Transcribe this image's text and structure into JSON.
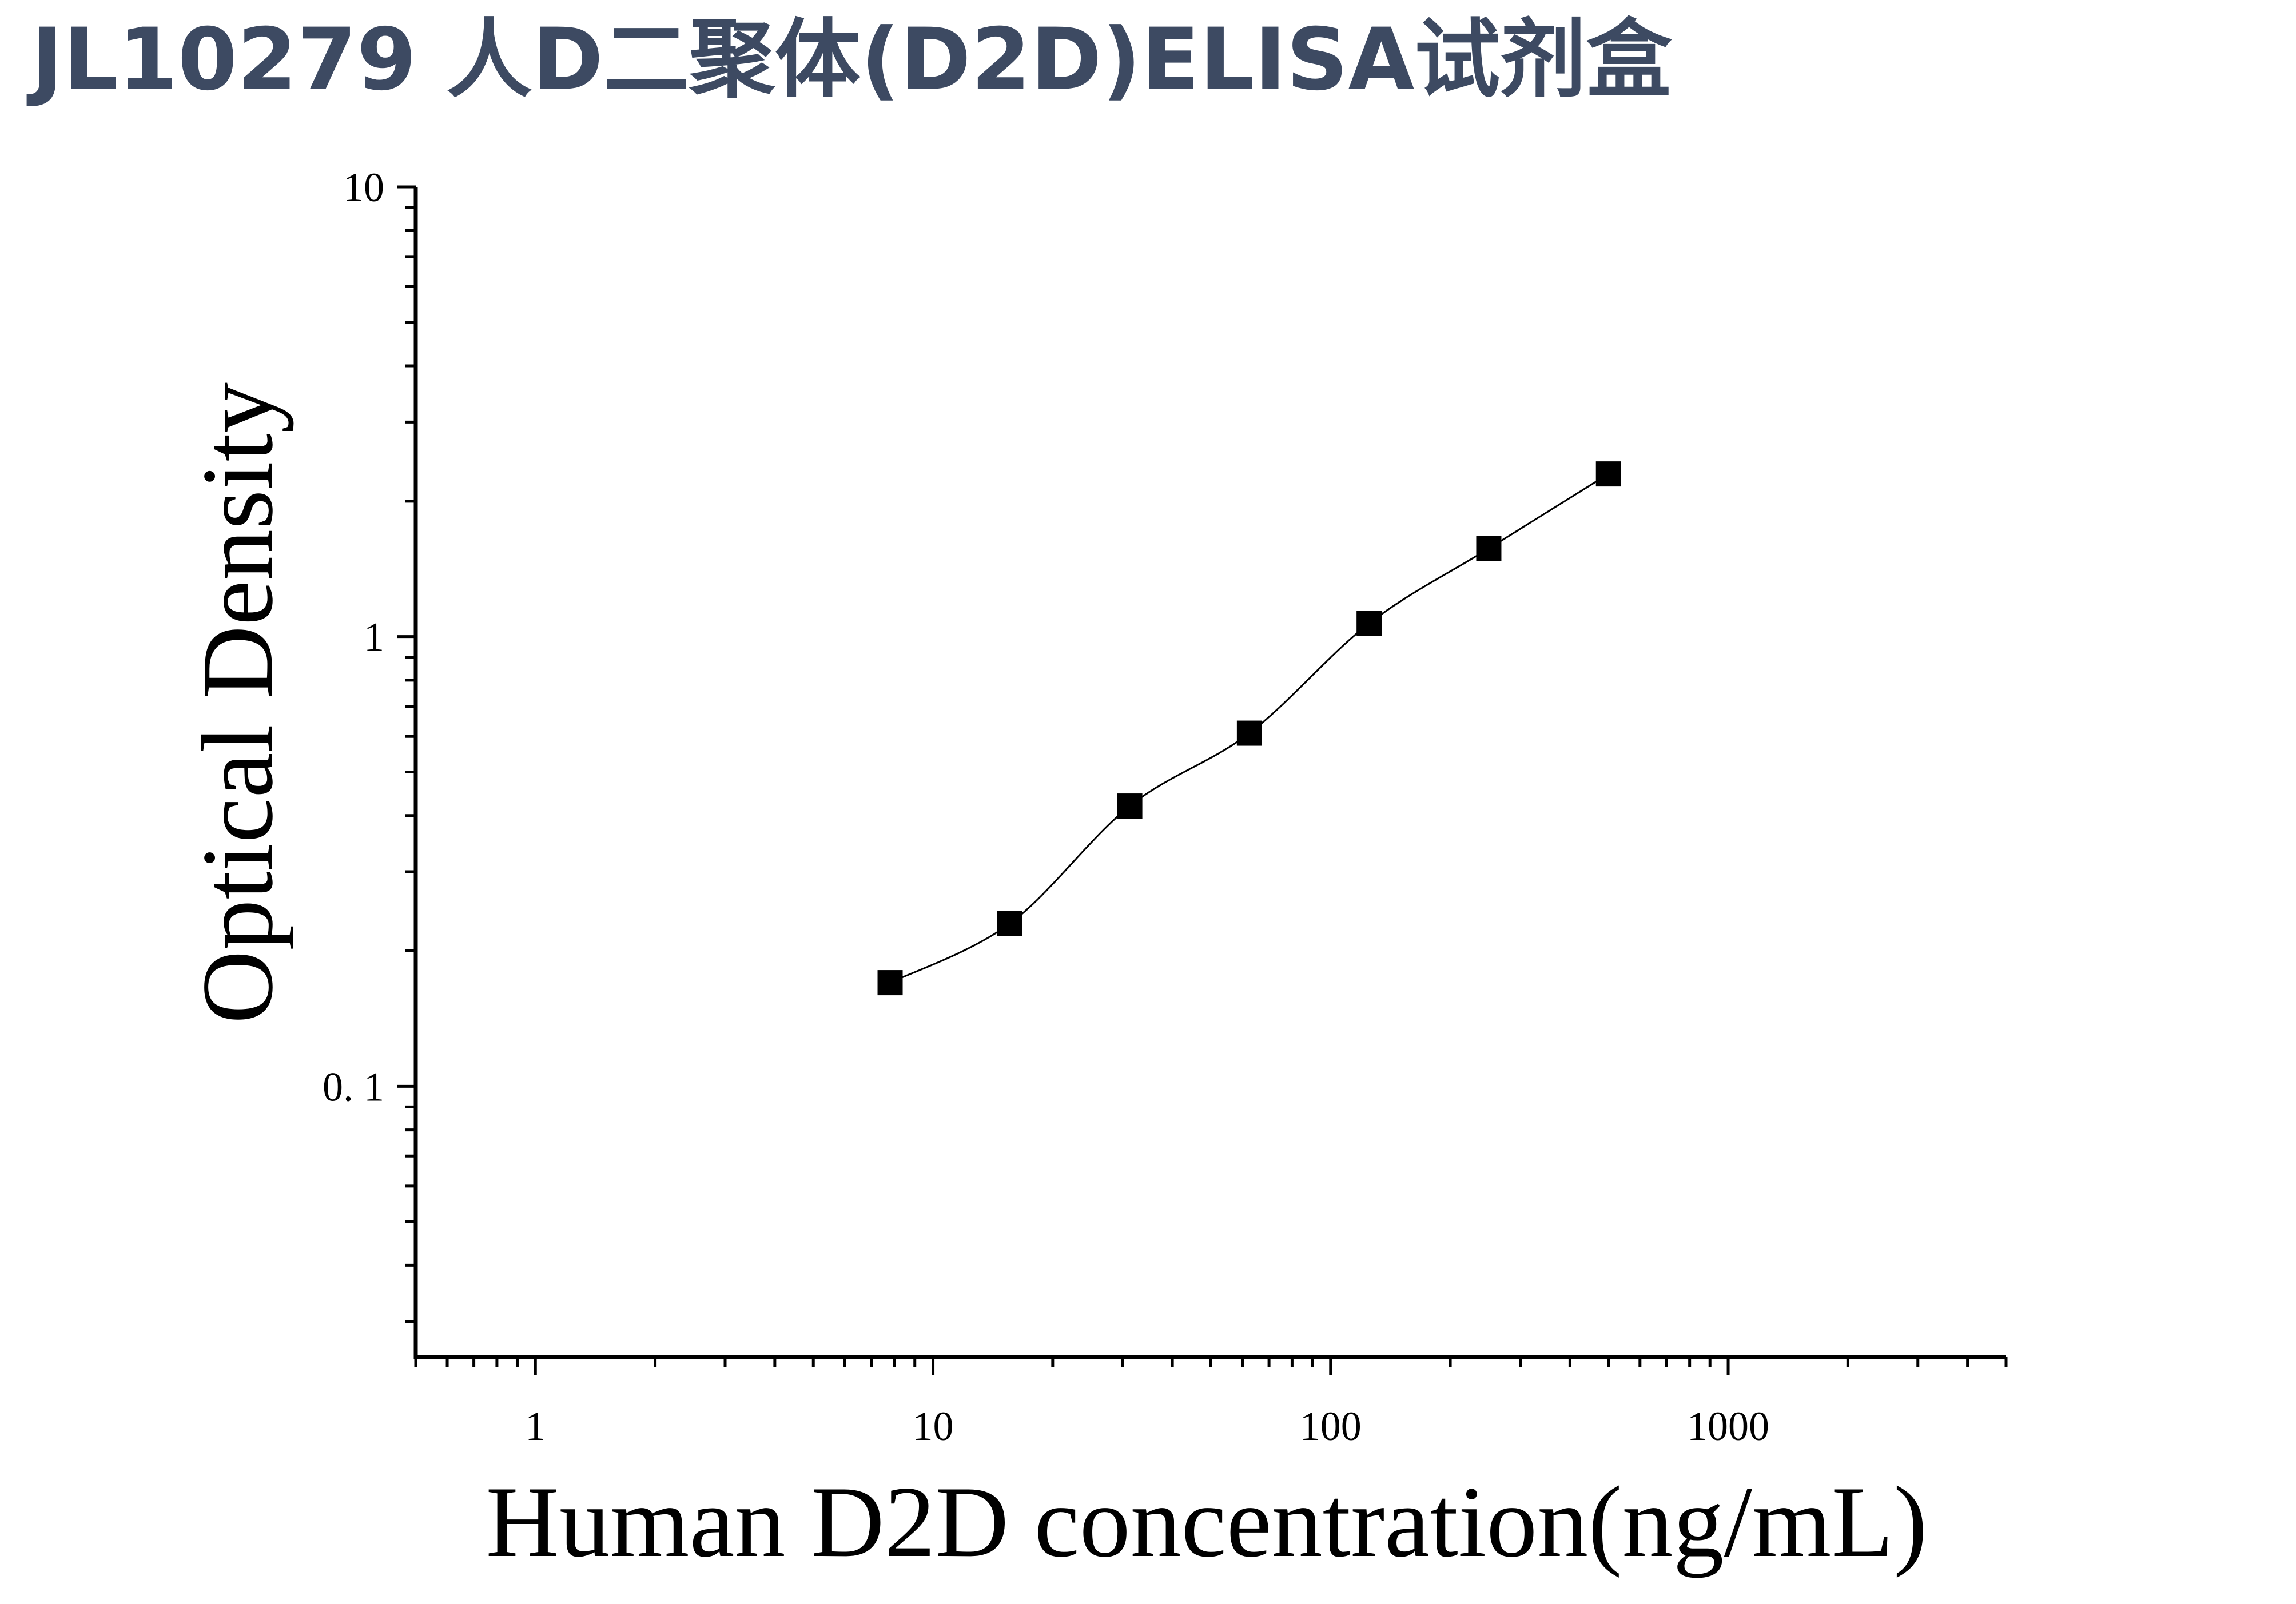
{
  "heading": "JL10279 人D二聚体(D2D)ELISA试剂盒",
  "colors": {
    "heading": "#3d4a62",
    "ink": "#000000"
  },
  "chart_data": {
    "type": "scatter",
    "xlabel": "Human D2D concentration(ng/mL)",
    "ylabel": "Optical Density",
    "x_scale": "log",
    "y_scale": "log",
    "xlim": [
      0.5,
      5000
    ],
    "ylim": [
      0.025,
      10
    ],
    "x_ticks": [
      {
        "value": 1,
        "label": "1"
      },
      {
        "value": 10,
        "label": "10"
      },
      {
        "value": 100,
        "label": "100"
      },
      {
        "value": 1000,
        "label": "1000"
      }
    ],
    "y_ticks": [
      {
        "value": 0.1,
        "label": "0. 1"
      },
      {
        "value": 1,
        "label": "1"
      },
      {
        "value": 10,
        "label": "10"
      }
    ],
    "grid": false,
    "legend": "none",
    "series": [
      {
        "marker": "square",
        "fit_line": true,
        "x": [
          7.8,
          15.6,
          31.25,
          62.5,
          125,
          250,
          500
        ],
        "y": [
          0.17,
          0.23,
          0.42,
          0.61,
          1.07,
          1.57,
          2.3
        ]
      }
    ]
  }
}
